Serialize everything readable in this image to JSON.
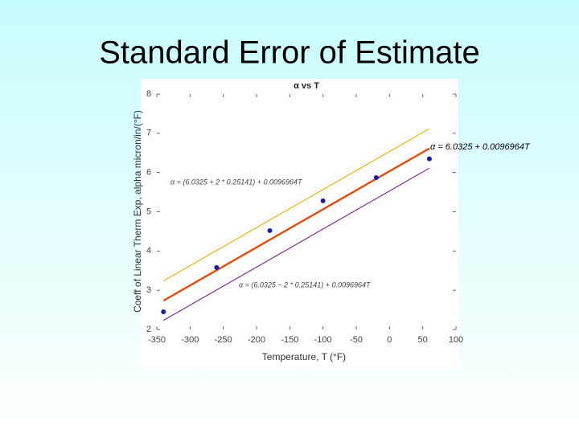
{
  "slide_title": "Standard Error of Estimate",
  "chart_data": {
    "type": "scatter",
    "title": "α vs T",
    "x_label": "Temperature, T (°F)",
    "y_label": "Coeff of Linear Therm Exp, alpha micron/in/(°F)",
    "xlim": [
      -350,
      100
    ],
    "xticks": [
      -350,
      -300,
      -250,
      -200,
      -150,
      -100,
      -50,
      0,
      50,
      100
    ],
    "ylim": [
      2,
      8
    ],
    "yticks": [
      2,
      3,
      4,
      5,
      6,
      7,
      8
    ],
    "grid": false,
    "series": [
      {
        "mode": "lines",
        "color": "#edb120",
        "x": [
          -340,
          60
        ],
        "values": [
          3.239,
          7.117
        ]
      },
      {
        "mode": "lines",
        "color": "#7e2f8e",
        "x": [
          -340,
          60
        ],
        "values": [
          2.233,
          6.111
        ]
      },
      {
        "mode": "lines",
        "color": "#d95319",
        "x": [
          -340,
          60
        ],
        "values": [
          2.736,
          6.614
        ]
      },
      {
        "mode": "markers",
        "color": "#1a1aa6",
        "x": [
          -340,
          -260,
          -180,
          -100,
          -20,
          60
        ],
        "values": [
          2.45,
          3.58,
          4.52,
          5.28,
          5.87,
          6.35
        ]
      }
    ],
    "annotations": [
      "α = 6.0325 + 0.0096964T",
      "α = (6.0325 + 2 * 0.25141) + 0.0096964T",
      "α = (6.0325 − 2 * 0.25141) + 0.0096964T"
    ]
  }
}
